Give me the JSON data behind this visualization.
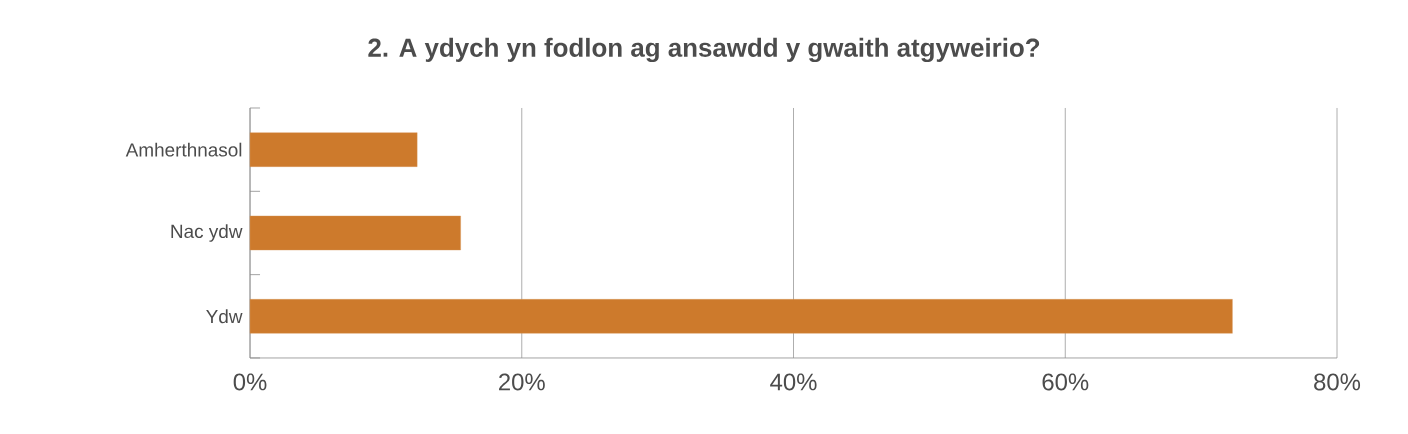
{
  "chart_data": {
    "type": "bar",
    "orientation": "horizontal",
    "title": "2. A ydych yn fodlon ag ansawdd y gwaith atgyweirio?",
    "categories": [
      "Amherthnasol",
      "Nac ydw",
      "Ydw"
    ],
    "values": [
      12.3,
      15.5,
      72.3
    ],
    "color": "#cd7a2c",
    "xlim": [
      0,
      80
    ],
    "xticks": [
      {
        "value": 0,
        "label": "0%"
      },
      {
        "value": 20,
        "label": "20%"
      },
      {
        "value": 40,
        "label": "40%"
      },
      {
        "value": 60,
        "label": "60%"
      },
      {
        "value": 80,
        "label": "80%"
      }
    ],
    "grid": "x"
  }
}
